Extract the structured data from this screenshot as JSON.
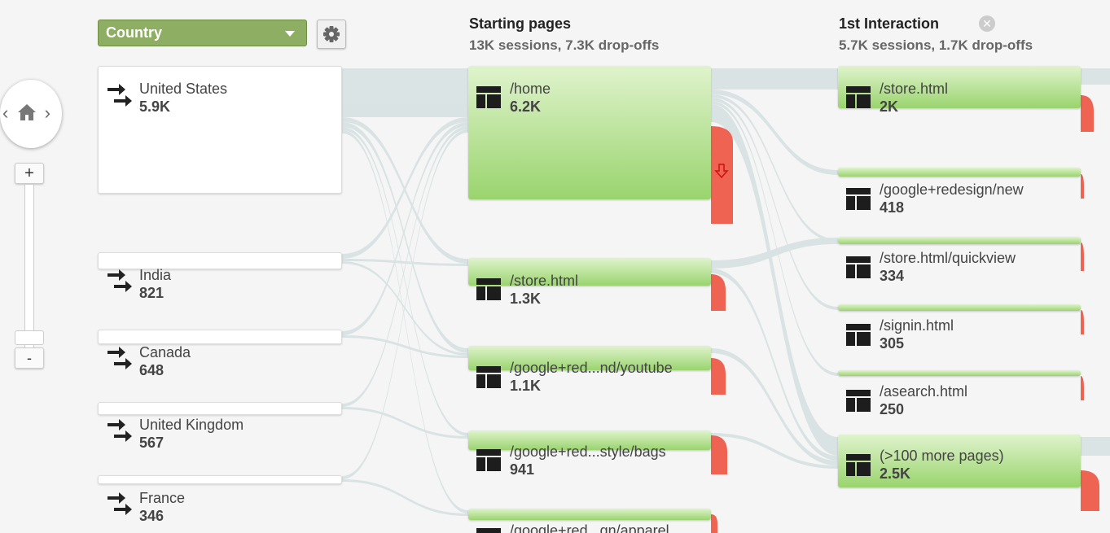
{
  "dimension": {
    "label": "Country"
  },
  "columns": [
    {
      "title": "Starting pages",
      "summary": "13K sessions, 7.3K drop-offs"
    },
    {
      "title": "1st Interaction",
      "summary": "5.7K sessions, 1.7K drop-offs"
    }
  ],
  "countries": [
    {
      "name": "United States",
      "value": "5.9K"
    },
    {
      "name": "India",
      "value": "821"
    },
    {
      "name": "Canada",
      "value": "648"
    },
    {
      "name": "United Kingdom",
      "value": "567"
    },
    {
      "name": "France",
      "value": "346"
    }
  ],
  "starting_pages": [
    {
      "name": "/home",
      "value": "6.2K"
    },
    {
      "name": "/store.html",
      "value": "1.3K"
    },
    {
      "name": "/google+red...nd/youtube",
      "value": "1.1K"
    },
    {
      "name": "/google+red...style/bags",
      "value": "941"
    },
    {
      "name": "/google+red...gn/apparel",
      "value": ""
    }
  ],
  "first_interaction": [
    {
      "name": "/store.html",
      "value": "2K"
    },
    {
      "name": "/google+redesign/new",
      "value": "418"
    },
    {
      "name": "/store.html/quickview",
      "value": "334"
    },
    {
      "name": "/signin.html",
      "value": "305"
    },
    {
      "name": "/asearch.html",
      "value": "250"
    },
    {
      "name": "(>100 more pages)",
      "value": "2.5K"
    }
  ],
  "zoom": {
    "plus": "+",
    "minus": "-"
  },
  "nav": {
    "left": "‹",
    "right": "›"
  },
  "colors": {
    "flow": "#d2dcdc",
    "dropoff": "#ee6352",
    "node_green": "#9ad46e",
    "select_green": "#8eae63"
  },
  "icons": [
    "home-icon",
    "gear-icon",
    "close-icon",
    "country-flow-icon",
    "page-icon",
    "dropoff-arrow-icon"
  ]
}
